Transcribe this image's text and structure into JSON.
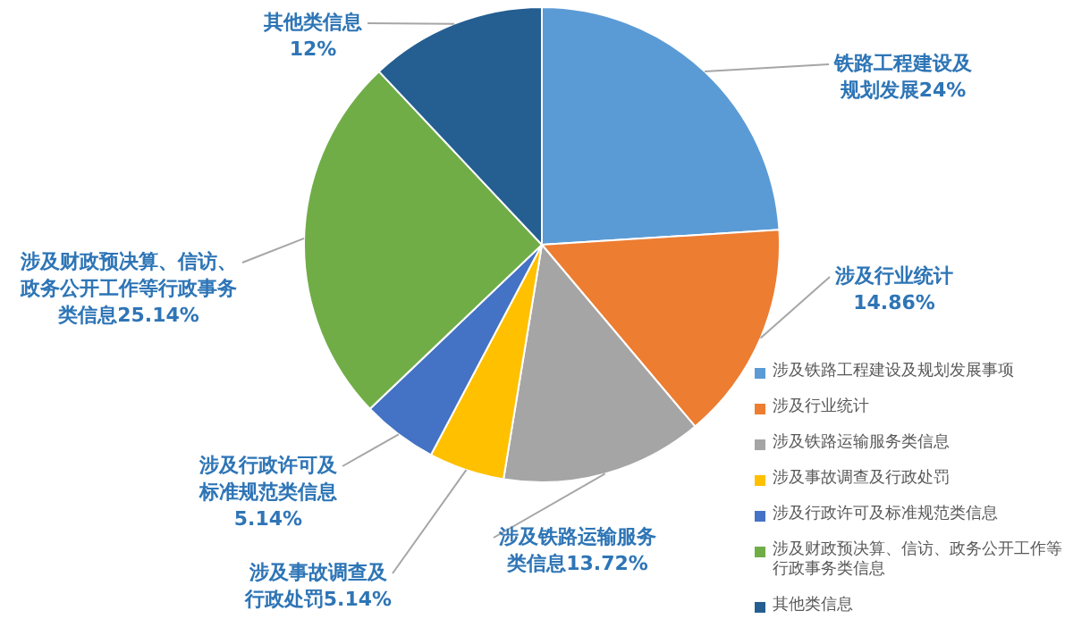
{
  "chart_data": {
    "type": "pie",
    "categories": [
      "涉及铁路工程建设及规划发展事项",
      "涉及行业统计",
      "涉及铁路运输服务类信息",
      "涉及事故调查及行政处罚",
      "涉及行政许可及标准规范类信息",
      "涉及财政预决算、信访、政务公开工作等行政事务类信息",
      "其他类信息"
    ],
    "values": [
      24,
      14.86,
      13.72,
      5.14,
      5.14,
      25.14,
      12
    ],
    "colors": [
      "#5b9bd5",
      "#ed7d31",
      "#a5a5a5",
      "#ffc000",
      "#4472c4",
      "#70ad47",
      "#255e91"
    ],
    "value_labels": [
      "铁路工程建设及规划发展24%",
      "涉及行业统计14.86%",
      "涉及铁路运输服务类信息13.72%",
      "涉及事故调查及行政处罚5.14%",
      "涉及行政许可及标准规范类信息5.14%",
      "涉及财政预决算、信访、政务公开工作等行政事务类信息25.14%",
      "其他类信息12%"
    ],
    "legend": "bottom right"
  }
}
